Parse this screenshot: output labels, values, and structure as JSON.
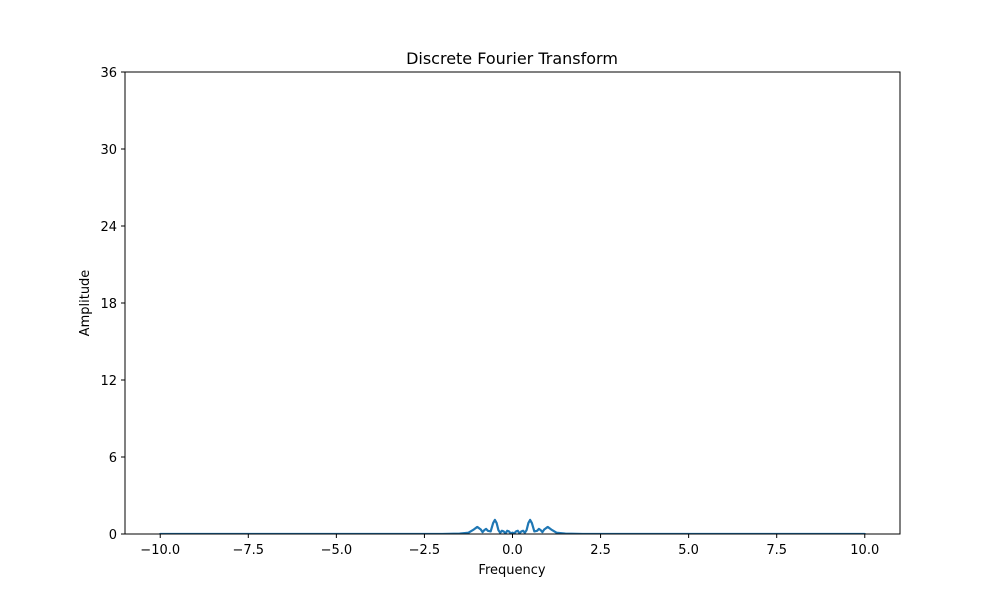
{
  "chart_data": {
    "type": "line",
    "title": "Discrete Fourier Transform",
    "xlabel": "Frequency",
    "ylabel": "Amplitude",
    "xlim": [
      -11.0,
      11.0
    ],
    "ylim": [
      0,
      36
    ],
    "x_ticks": [
      -10.0,
      -7.5,
      -5.0,
      -2.5,
      0.0,
      2.5,
      5.0,
      7.5,
      10.0
    ],
    "x_tick_labels": [
      "−10.0",
      "−7.5",
      "−5.0",
      "−2.5",
      "0.0",
      "2.5",
      "5.0",
      "7.5",
      "10.0"
    ],
    "y_ticks": [
      0,
      6,
      12,
      18,
      24,
      30,
      36
    ],
    "y_tick_labels": [
      "0",
      "6",
      "12",
      "18",
      "24",
      "30",
      "36"
    ],
    "grid": false,
    "series_color": "#1f77b4",
    "series": [
      {
        "x": [
          -10.0,
          -8.0,
          -6.0,
          -4.0,
          -2.0,
          -1.5,
          -1.25,
          -1.1,
          -1.0,
          -0.9,
          -0.85,
          -0.8,
          -0.75,
          -0.7,
          -0.62,
          -0.55,
          -0.5,
          -0.45,
          -0.4,
          -0.35,
          -0.3,
          -0.25,
          -0.2,
          -0.15,
          -0.1,
          -0.05,
          0.0,
          0.05,
          0.1,
          0.15,
          0.2,
          0.25,
          0.3,
          0.35,
          0.4,
          0.45,
          0.5,
          0.55,
          0.62,
          0.7,
          0.75,
          0.8,
          0.85,
          0.9,
          1.0,
          1.1,
          1.25,
          1.5,
          2.0,
          4.0,
          6.0,
          8.0,
          10.0
        ],
        "y": [
          0.0,
          0.0,
          0.0,
          0.0,
          0.0,
          0.03,
          0.1,
          0.35,
          0.55,
          0.35,
          0.15,
          0.3,
          0.4,
          0.25,
          0.2,
          0.85,
          1.1,
          0.85,
          0.3,
          0.1,
          0.25,
          0.2,
          0.05,
          0.25,
          0.2,
          0.05,
          0.1,
          0.05,
          0.2,
          0.25,
          0.05,
          0.2,
          0.25,
          0.1,
          0.3,
          0.85,
          1.1,
          0.85,
          0.2,
          0.25,
          0.4,
          0.3,
          0.15,
          0.35,
          0.55,
          0.35,
          0.1,
          0.03,
          0.0,
          0.0,
          0.0,
          0.0,
          0.0
        ]
      }
    ]
  }
}
